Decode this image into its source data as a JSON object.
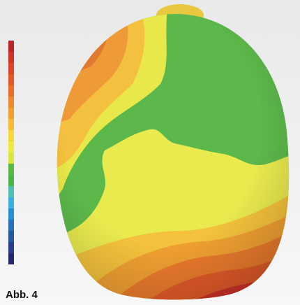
{
  "figure": {
    "label": "Abb. 4"
  }
}
